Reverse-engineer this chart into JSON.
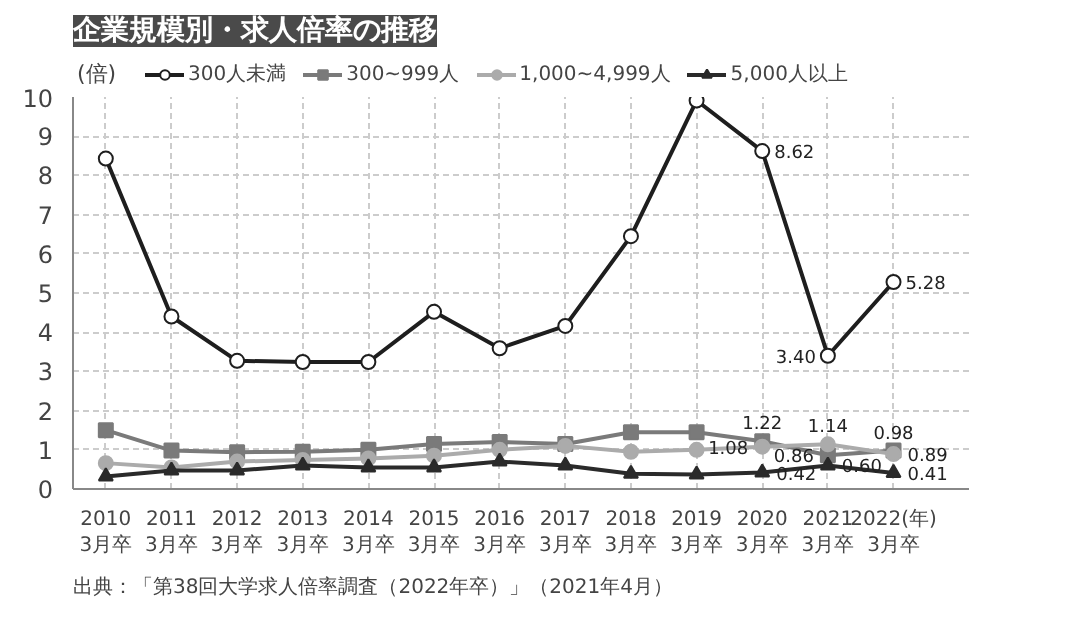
{
  "chart_data": {
    "type": "line",
    "title": "企業規模別・求人倍率の推移",
    "ylabel": "(倍)",
    "categories": [
      "2010\n3月卒",
      "2011\n3月卒",
      "2012\n3月卒",
      "2013\n3月卒",
      "2014\n3月卒",
      "2015\n3月卒",
      "2016\n3月卒",
      "2017\n3月卒",
      "2018\n3月卒",
      "2019\n3月卒",
      "2020\n3月卒",
      "2021\n3月卒",
      "2022(年)\n3月卒"
    ],
    "ylim": [
      0,
      10
    ],
    "yticks": [
      0,
      1,
      2,
      3,
      4,
      5,
      6,
      7,
      8,
      9,
      10
    ],
    "grid": true,
    "legend": "top",
    "line_style": "solid",
    "series": [
      {
        "name": "300人未満",
        "color": "#1e1e1e",
        "marker": "circle",
        "values": [
          8.43,
          4.4,
          3.27,
          3.24,
          3.24,
          4.52,
          3.59,
          4.16,
          6.45,
          9.91,
          8.62,
          3.4,
          5.28
        ],
        "value_labels": [
          null,
          null,
          null,
          null,
          null,
          null,
          null,
          null,
          null,
          null,
          "8.62",
          "3.40",
          "5.28"
        ]
      },
      {
        "name": "300~999人",
        "color": "#7a7a7a",
        "marker": "square",
        "values": [
          1.5,
          0.98,
          0.94,
          0.95,
          1.0,
          1.15,
          1.2,
          1.15,
          1.45,
          1.45,
          1.22,
          0.86,
          0.98
        ],
        "value_labels": [
          null,
          null,
          null,
          null,
          null,
          null,
          null,
          null,
          null,
          null,
          "1.22",
          "0.86",
          "0.98"
        ]
      },
      {
        "name": "1,000~4,999人",
        "color": "#ababab",
        "marker": "circle",
        "values": [
          0.66,
          0.55,
          0.7,
          0.74,
          0.78,
          0.85,
          1.0,
          1.1,
          0.95,
          1.0,
          1.08,
          1.14,
          0.89
        ],
        "value_labels": [
          null,
          null,
          null,
          null,
          null,
          null,
          null,
          null,
          null,
          null,
          "1.08",
          "1.14",
          "0.89"
        ]
      },
      {
        "name": "5,000人以上",
        "color": "#2a2a2a",
        "marker": "triangle",
        "values": [
          0.32,
          0.47,
          0.47,
          0.6,
          0.55,
          0.55,
          0.7,
          0.6,
          0.39,
          0.37,
          0.42,
          0.6,
          0.41
        ],
        "value_labels": [
          null,
          null,
          null,
          null,
          null,
          null,
          null,
          null,
          null,
          null,
          "0.42",
          "0.60",
          "0.41"
        ]
      }
    ],
    "annotations": [
      "出典：「第38回大学求人倍率調査（2022年卒）」（2021年4月）"
    ]
  }
}
